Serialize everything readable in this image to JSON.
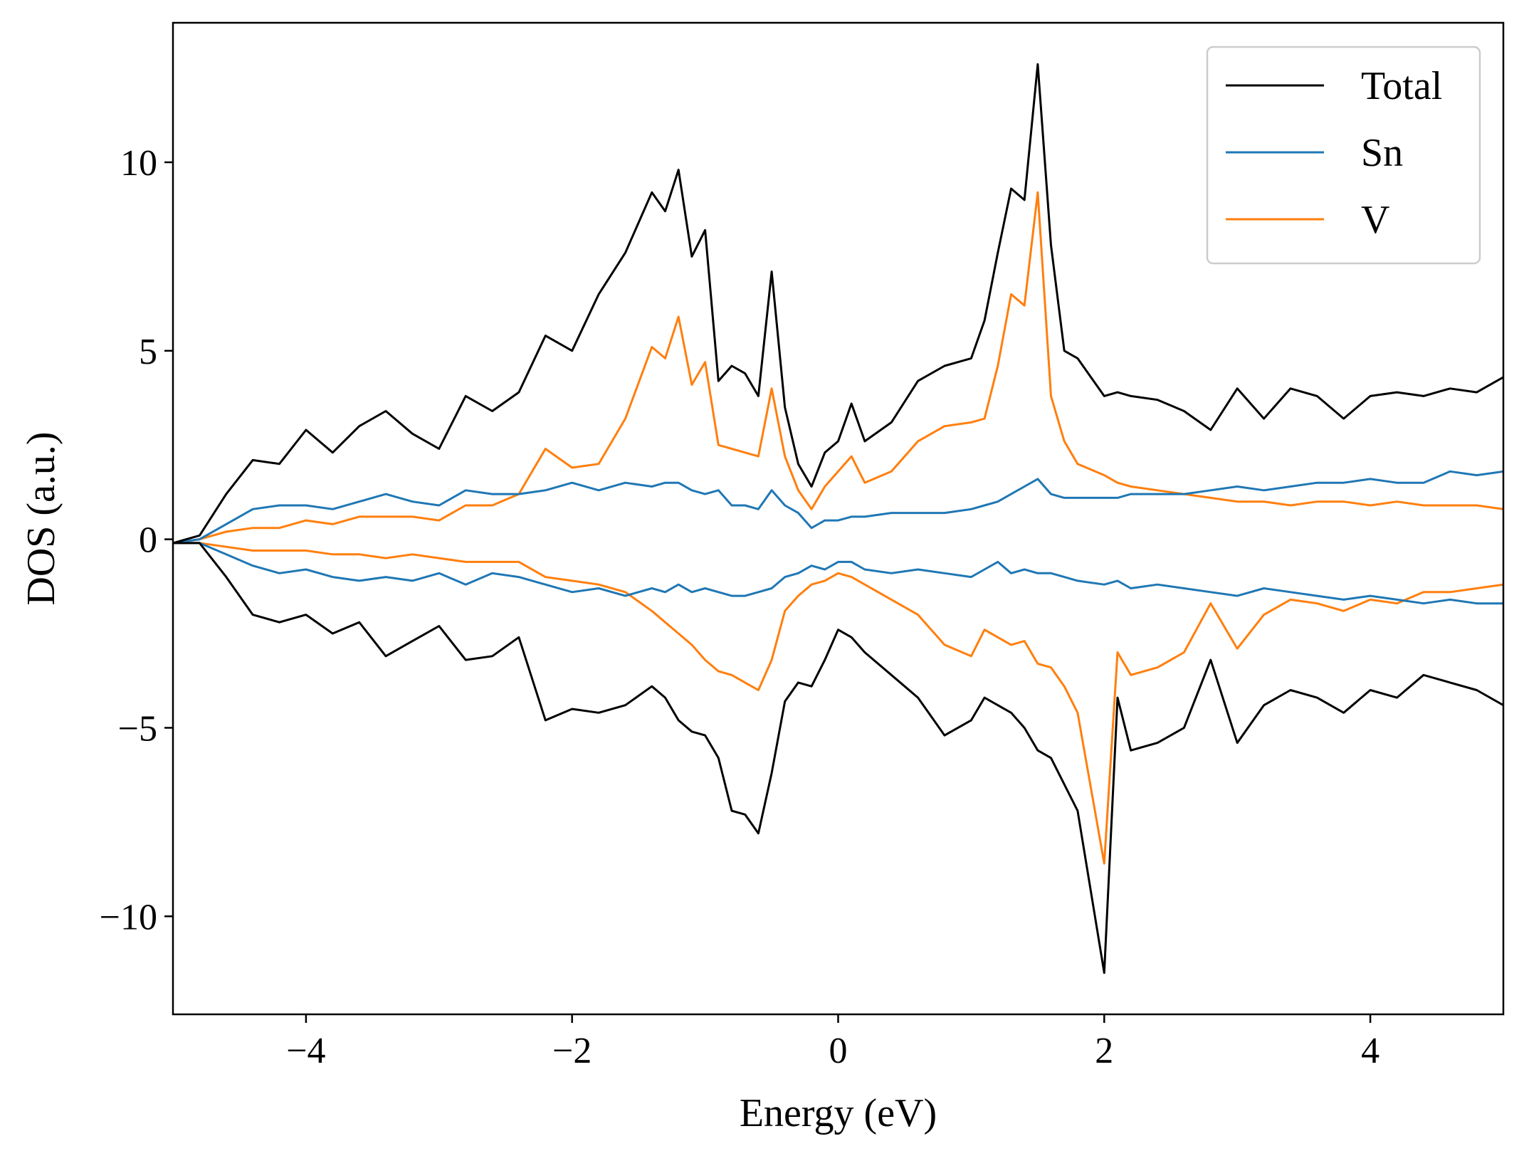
{
  "chart_data": {
    "type": "line",
    "title": "",
    "xlabel": "Energy (eV)",
    "ylabel": "DOS (a.u.)",
    "xlim": [
      -5,
      5
    ],
    "ylim": [
      -12.6,
      13.7
    ],
    "xticks": [
      -4,
      -2,
      0,
      2,
      4
    ],
    "xtick_labels": [
      "−4",
      "−2",
      "0",
      "2",
      "4"
    ],
    "yticks": [
      -10,
      -5,
      0,
      5,
      10
    ],
    "ytick_labels": [
      "−10",
      "−5",
      "0",
      "5",
      "10"
    ],
    "grid": false,
    "legend_position": "top-right",
    "x": [
      -5.0,
      -4.8,
      -4.6,
      -4.4,
      -4.2,
      -4.0,
      -3.8,
      -3.6,
      -3.4,
      -3.2,
      -3.0,
      -2.8,
      -2.6,
      -2.4,
      -2.2,
      -2.0,
      -1.8,
      -1.6,
      -1.4,
      -1.3,
      -1.2,
      -1.1,
      -1.0,
      -0.9,
      -0.8,
      -0.7,
      -0.6,
      -0.5,
      -0.4,
      -0.3,
      -0.2,
      -0.1,
      0.0,
      0.1,
      0.2,
      0.4,
      0.6,
      0.8,
      1.0,
      1.1,
      1.2,
      1.3,
      1.4,
      1.5,
      1.6,
      1.7,
      1.8,
      2.0,
      2.1,
      2.2,
      2.4,
      2.6,
      2.8,
      3.0,
      3.2,
      3.4,
      3.6,
      3.8,
      4.0,
      4.2,
      4.4,
      4.6,
      4.8,
      5.0
    ],
    "series": [
      {
        "name": "Total",
        "color": "#000000",
        "up": [
          -0.1,
          0.1,
          1.2,
          2.1,
          2.0,
          2.9,
          2.3,
          3.0,
          3.4,
          2.8,
          2.4,
          3.8,
          3.4,
          3.9,
          5.4,
          5.0,
          6.5,
          7.6,
          9.2,
          8.7,
          9.8,
          7.5,
          8.2,
          4.2,
          4.6,
          4.4,
          3.8,
          7.1,
          3.5,
          2.0,
          1.4,
          2.3,
          2.6,
          3.6,
          2.6,
          3.1,
          4.2,
          4.6,
          4.8,
          5.8,
          7.6,
          9.3,
          9.0,
          12.6,
          7.8,
          5.0,
          4.8,
          3.8,
          3.9,
          3.8,
          3.7,
          3.4,
          2.9,
          4.0,
          3.2,
          4.0,
          3.8,
          3.2,
          3.8,
          3.9,
          3.8,
          4.0,
          3.9,
          4.3
        ],
        "down": [
          -0.1,
          -0.1,
          -1.0,
          -2.0,
          -2.2,
          -2.0,
          -2.5,
          -2.2,
          -3.1,
          -2.7,
          -2.3,
          -3.2,
          -3.1,
          -2.6,
          -4.8,
          -4.5,
          -4.6,
          -4.4,
          -3.9,
          -4.2,
          -4.8,
          -5.1,
          -5.2,
          -5.8,
          -7.2,
          -7.3,
          -7.8,
          -6.2,
          -4.3,
          -3.8,
          -3.9,
          -3.2,
          -2.4,
          -2.6,
          -3.0,
          -3.6,
          -4.2,
          -5.2,
          -4.8,
          -4.2,
          -4.4,
          -4.6,
          -5.0,
          -5.6,
          -5.8,
          -6.5,
          -7.2,
          -11.5,
          -4.2,
          -5.6,
          -5.4,
          -5.0,
          -3.2,
          -5.4,
          -4.4,
          -4.0,
          -4.2,
          -4.6,
          -4.0,
          -4.2,
          -3.6,
          -3.8,
          -4.0,
          -4.4
        ]
      },
      {
        "name": "Sn",
        "color": "#1f77b4",
        "up": [
          -0.1,
          0.0,
          0.4,
          0.8,
          0.9,
          0.9,
          0.8,
          1.0,
          1.2,
          1.0,
          0.9,
          1.3,
          1.2,
          1.2,
          1.3,
          1.5,
          1.3,
          1.5,
          1.4,
          1.5,
          1.5,
          1.3,
          1.2,
          1.3,
          0.9,
          0.9,
          0.8,
          1.3,
          0.9,
          0.7,
          0.3,
          0.5,
          0.5,
          0.6,
          0.6,
          0.7,
          0.7,
          0.7,
          0.8,
          0.9,
          1.0,
          1.2,
          1.4,
          1.6,
          1.2,
          1.1,
          1.1,
          1.1,
          1.1,
          1.2,
          1.2,
          1.2,
          1.3,
          1.4,
          1.3,
          1.4,
          1.5,
          1.5,
          1.6,
          1.5,
          1.5,
          1.8,
          1.7,
          1.8
        ],
        "down": [
          -0.1,
          -0.1,
          -0.4,
          -0.7,
          -0.9,
          -0.8,
          -1.0,
          -1.1,
          -1.0,
          -1.1,
          -0.9,
          -1.2,
          -0.9,
          -1.0,
          -1.2,
          -1.4,
          -1.3,
          -1.5,
          -1.3,
          -1.4,
          -1.2,
          -1.4,
          -1.3,
          -1.4,
          -1.5,
          -1.5,
          -1.4,
          -1.3,
          -1.0,
          -0.9,
          -0.7,
          -0.8,
          -0.6,
          -0.6,
          -0.8,
          -0.9,
          -0.8,
          -0.9,
          -1.0,
          -0.8,
          -0.6,
          -0.9,
          -0.8,
          -0.9,
          -0.9,
          -1.0,
          -1.1,
          -1.2,
          -1.1,
          -1.3,
          -1.2,
          -1.3,
          -1.4,
          -1.5,
          -1.3,
          -1.4,
          -1.5,
          -1.6,
          -1.5,
          -1.6,
          -1.7,
          -1.6,
          -1.7,
          -1.7
        ]
      },
      {
        "name": "V",
        "color": "#ff7f0e",
        "up": [
          -0.1,
          0.0,
          0.2,
          0.3,
          0.3,
          0.5,
          0.4,
          0.6,
          0.6,
          0.6,
          0.5,
          0.9,
          0.9,
          1.2,
          2.4,
          1.9,
          2.0,
          3.2,
          5.1,
          4.8,
          5.9,
          4.1,
          4.7,
          2.5,
          2.4,
          2.3,
          2.2,
          4.0,
          2.2,
          1.3,
          0.8,
          1.4,
          1.8,
          2.2,
          1.5,
          1.8,
          2.6,
          3.0,
          3.1,
          3.2,
          4.6,
          6.5,
          6.2,
          9.2,
          3.8,
          2.6,
          2.0,
          1.7,
          1.5,
          1.4,
          1.3,
          1.2,
          1.1,
          1.0,
          1.0,
          0.9,
          1.0,
          1.0,
          0.9,
          1.0,
          0.9,
          0.9,
          0.9,
          0.8
        ],
        "down": [
          -0.1,
          -0.1,
          -0.2,
          -0.3,
          -0.3,
          -0.3,
          -0.4,
          -0.4,
          -0.5,
          -0.4,
          -0.5,
          -0.6,
          -0.6,
          -0.6,
          -1.0,
          -1.1,
          -1.2,
          -1.4,
          -1.9,
          -2.2,
          -2.5,
          -2.8,
          -3.2,
          -3.5,
          -3.6,
          -3.8,
          -4.0,
          -3.2,
          -1.9,
          -1.5,
          -1.2,
          -1.1,
          -0.9,
          -1.0,
          -1.2,
          -1.6,
          -2.0,
          -2.8,
          -3.1,
          -2.4,
          -2.6,
          -2.8,
          -2.7,
          -3.3,
          -3.4,
          -3.9,
          -4.6,
          -8.6,
          -3.0,
          -3.6,
          -3.4,
          -3.0,
          -1.7,
          -2.9,
          -2.0,
          -1.6,
          -1.7,
          -1.9,
          -1.6,
          -1.7,
          -1.4,
          -1.4,
          -1.3,
          -1.2
        ]
      }
    ]
  }
}
